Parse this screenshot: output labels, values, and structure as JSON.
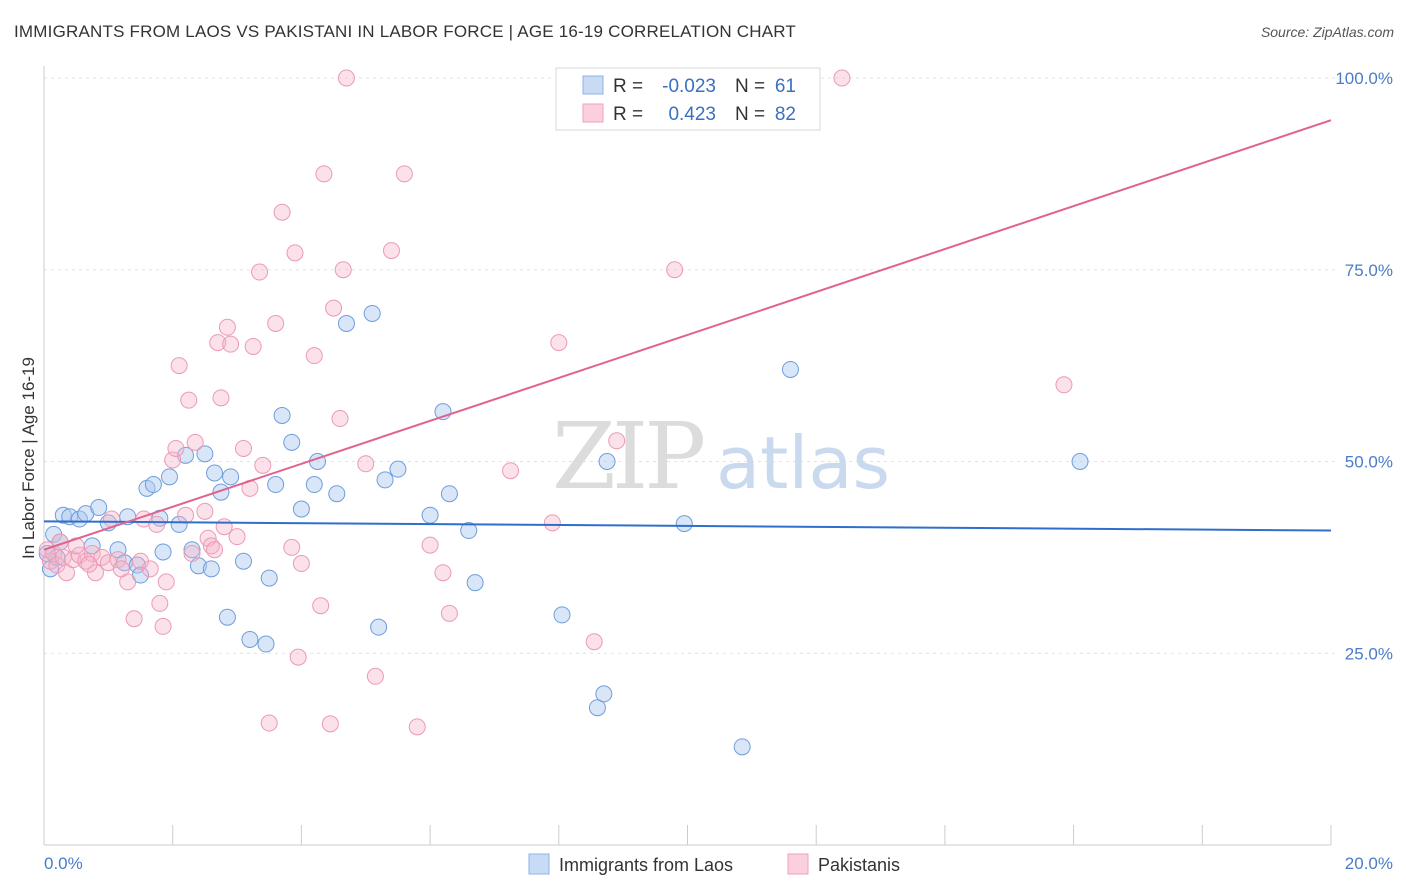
{
  "header": {
    "title": "IMMIGRANTS FROM LAOS VS PAKISTANI IN LABOR FORCE | AGE 16-19 CORRELATION CHART",
    "source": "Source: ZipAtlas.com"
  },
  "watermark": {
    "left": "ZIP",
    "right": "atlas"
  },
  "legend": {
    "r_label": "R =",
    "n_label": "N =",
    "rows": [
      {
        "r": "-0.023",
        "n": "61",
        "color": "#a9c6f0"
      },
      {
        "r": "0.423",
        "n": "82",
        "color": "#f5b8cb"
      }
    ]
  },
  "chart_data": {
    "type": "scatter",
    "title": "IMMIGRANTS FROM LAOS VS PAKISTANI IN LABOR FORCE | AGE 16-19 CORRELATION CHART",
    "xlabel": "",
    "ylabel": "In Labor Force | Age 16-19",
    "xlim": [
      0,
      20
    ],
    "ylim": [
      0,
      100
    ],
    "x_ticks": [
      "0.0%",
      "20.0%"
    ],
    "y_ticks": [
      {
        "value": 25,
        "label": "25.0%"
      },
      {
        "value": 50,
        "label": "50.0%"
      },
      {
        "value": 75,
        "label": "75.0%"
      },
      {
        "value": 100,
        "label": "100.0%"
      }
    ],
    "grid": true,
    "legend_position": "top-center",
    "series": [
      {
        "name": "Immigrants from Laos",
        "color": "#7aa5e0",
        "line_color": "#2f6fcc",
        "trend": {
          "x": [
            0,
            20
          ],
          "y": [
            42.2,
            41.0
          ]
        },
        "points": [
          [
            0.1,
            36.0
          ],
          [
            0.15,
            40.5
          ],
          [
            0.25,
            39.5
          ],
          [
            0.3,
            43.0
          ],
          [
            0.4,
            42.8
          ],
          [
            0.55,
            42.5
          ],
          [
            0.65,
            43.2
          ],
          [
            0.75,
            39.0
          ],
          [
            0.85,
            44.0
          ],
          [
            1.0,
            42.0
          ],
          [
            1.15,
            38.5
          ],
          [
            1.25,
            36.8
          ],
          [
            1.3,
            42.8
          ],
          [
            1.45,
            36.5
          ],
          [
            1.5,
            35.2
          ],
          [
            1.6,
            46.5
          ],
          [
            1.7,
            47.0
          ],
          [
            1.8,
            42.6
          ],
          [
            1.85,
            38.2
          ],
          [
            1.95,
            48.0
          ],
          [
            2.1,
            41.8
          ],
          [
            2.2,
            50.8
          ],
          [
            2.3,
            38.5
          ],
          [
            2.4,
            36.4
          ],
          [
            2.5,
            51.0
          ],
          [
            2.6,
            36.0
          ],
          [
            2.65,
            48.5
          ],
          [
            2.75,
            46.0
          ],
          [
            2.85,
            29.7
          ],
          [
            2.9,
            48.0
          ],
          [
            3.1,
            37.0
          ],
          [
            3.2,
            26.8
          ],
          [
            3.45,
            26.2
          ],
          [
            3.5,
            34.8
          ],
          [
            3.6,
            47.0
          ],
          [
            3.7,
            56.0
          ],
          [
            3.85,
            52.5
          ],
          [
            4.0,
            43.8
          ],
          [
            4.2,
            47.0
          ],
          [
            4.25,
            50.0
          ],
          [
            4.55,
            45.8
          ],
          [
            4.7,
            68.0
          ],
          [
            5.1,
            69.3
          ],
          [
            5.2,
            28.4
          ],
          [
            5.3,
            47.6
          ],
          [
            5.5,
            49.0
          ],
          [
            6.0,
            43.0
          ],
          [
            6.2,
            56.5
          ],
          [
            6.3,
            45.8
          ],
          [
            6.6,
            41.0
          ],
          [
            6.7,
            34.2
          ],
          [
            8.05,
            30.0
          ],
          [
            8.6,
            17.9
          ],
          [
            8.7,
            19.7
          ],
          [
            8.75,
            50.0
          ],
          [
            9.95,
            41.9
          ],
          [
            10.85,
            12.8
          ],
          [
            11.6,
            62.0
          ],
          [
            16.1,
            50.0
          ],
          [
            0.05,
            38.0
          ],
          [
            0.2,
            37.5
          ]
        ]
      },
      {
        "name": "Pakistanis",
        "color": "#f0a0bb",
        "line_color": "#e0628e",
        "trend": {
          "x": [
            0,
            20
          ],
          "y": [
            38.5,
            94.5
          ]
        },
        "points": [
          [
            0.05,
            38.5
          ],
          [
            0.1,
            37.0
          ],
          [
            0.15,
            38.0
          ],
          [
            0.2,
            36.5
          ],
          [
            0.3,
            37.5
          ],
          [
            0.35,
            35.5
          ],
          [
            0.45,
            37.2
          ],
          [
            0.55,
            37.8
          ],
          [
            0.65,
            37.0
          ],
          [
            0.75,
            38.0
          ],
          [
            0.8,
            35.5
          ],
          [
            0.9,
            37.5
          ],
          [
            1.0,
            36.8
          ],
          [
            1.05,
            42.5
          ],
          [
            1.15,
            37.2
          ],
          [
            1.3,
            34.3
          ],
          [
            1.4,
            29.5
          ],
          [
            1.5,
            37.0
          ],
          [
            1.55,
            42.5
          ],
          [
            1.65,
            36.0
          ],
          [
            1.75,
            41.8
          ],
          [
            1.8,
            31.5
          ],
          [
            1.85,
            28.5
          ],
          [
            1.9,
            34.3
          ],
          [
            2.0,
            50.2
          ],
          [
            2.05,
            51.7
          ],
          [
            2.1,
            62.5
          ],
          [
            2.2,
            43.0
          ],
          [
            2.25,
            58.0
          ],
          [
            2.35,
            52.5
          ],
          [
            2.5,
            43.5
          ],
          [
            2.55,
            40.0
          ],
          [
            2.6,
            39.0
          ],
          [
            2.65,
            38.5
          ],
          [
            2.7,
            65.5
          ],
          [
            2.75,
            58.3
          ],
          [
            2.8,
            41.5
          ],
          [
            2.85,
            67.5
          ],
          [
            2.9,
            65.3
          ],
          [
            3.1,
            51.7
          ],
          [
            3.2,
            46.5
          ],
          [
            3.25,
            65.0
          ],
          [
            3.35,
            74.7
          ],
          [
            3.4,
            49.5
          ],
          [
            3.5,
            15.9
          ],
          [
            3.6,
            68.0
          ],
          [
            3.7,
            82.5
          ],
          [
            3.85,
            38.8
          ],
          [
            3.9,
            77.2
          ],
          [
            3.95,
            24.5
          ],
          [
            4.2,
            63.8
          ],
          [
            4.3,
            31.2
          ],
          [
            4.35,
            87.5
          ],
          [
            4.45,
            15.8
          ],
          [
            4.5,
            70.0
          ],
          [
            4.6,
            55.6
          ],
          [
            4.65,
            75.0
          ],
          [
            4.7,
            100.0
          ],
          [
            5.0,
            49.7
          ],
          [
            5.15,
            22.0
          ],
          [
            5.4,
            77.5
          ],
          [
            5.6,
            87.5
          ],
          [
            5.8,
            15.4
          ],
          [
            6.2,
            35.5
          ],
          [
            6.3,
            30.2
          ],
          [
            7.25,
            48.8
          ],
          [
            7.9,
            42.0
          ],
          [
            8.0,
            65.5
          ],
          [
            8.55,
            26.5
          ],
          [
            8.9,
            52.7
          ],
          [
            9.0,
            100.0
          ],
          [
            9.8,
            75.0
          ],
          [
            12.4,
            100.0
          ],
          [
            15.85,
            60.0
          ],
          [
            0.25,
            39.5
          ],
          [
            0.5,
            39.0
          ],
          [
            0.7,
            36.6
          ],
          [
            1.2,
            36.0
          ],
          [
            2.3,
            38.0
          ],
          [
            3.0,
            40.2
          ],
          [
            4.0,
            36.7
          ],
          [
            6.0,
            39.1
          ]
        ]
      }
    ]
  }
}
